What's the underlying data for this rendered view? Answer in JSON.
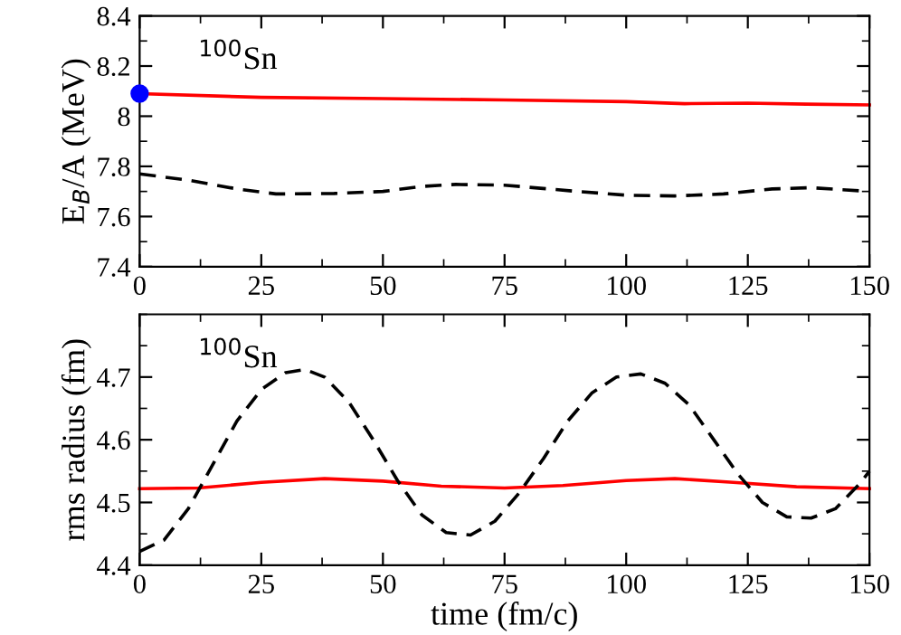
{
  "chart_data": [
    {
      "type": "line",
      "ylabel": "E$_{B}$/A (MeV)",
      "annotations": [
        "$^{100}$Sn"
      ],
      "xlim": [
        0,
        150
      ],
      "xticks": [
        0,
        {
          "value": 12.5,
          "label": null
        },
        25,
        {
          "value": 37.5,
          "label": null
        },
        50,
        {
          "value": 62.5,
          "label": null
        },
        75,
        {
          "value": 87.5,
          "label": null
        },
        100,
        {
          "value": 112.5,
          "label": null
        },
        125,
        {
          "value": 137.5,
          "label": null
        },
        150
      ],
      "ylim": [
        7.4,
        8.4
      ],
      "yticks": [
        7.4,
        {
          "value": 7.5,
          "label": null
        },
        7.6,
        {
          "value": 7.7,
          "label": null
        },
        7.8,
        {
          "value": 7.9,
          "label": null
        },
        8,
        {
          "value": 8.1,
          "label": null
        },
        8.2,
        {
          "value": 8.3,
          "label": null
        },
        8.4
      ],
      "grid": false,
      "legend": false,
      "series": [
        {
          "color": "#ff0000",
          "line_style": "solid",
          "x": [
            0,
            25,
            50,
            75,
            100,
            112,
            125,
            137,
            150
          ],
          "values": [
            8.09,
            8.075,
            8.07,
            8.065,
            8.058,
            8.05,
            8.052,
            8.048,
            8.045
          ]
        },
        {
          "color": "#000000",
          "line_style": "dashed",
          "x": [
            0,
            10,
            20,
            28,
            40,
            50,
            58,
            65,
            75,
            90,
            100,
            110,
            120,
            130,
            138,
            150
          ],
          "values": [
            7.77,
            7.745,
            7.71,
            7.69,
            7.692,
            7.7,
            7.72,
            7.728,
            7.725,
            7.7,
            7.685,
            7.682,
            7.69,
            7.71,
            7.715,
            7.7
          ]
        },
        {
          "type": "scatter",
          "color": "#0000ff",
          "marker": "circle",
          "x": [
            0
          ],
          "values": [
            8.09
          ]
        }
      ]
    },
    {
      "type": "line",
      "ylabel": "rms radius (fm)",
      "xlabel": "time (fm/c)",
      "annotations": [
        "$^{100}$Sn"
      ],
      "xlim": [
        0,
        150
      ],
      "xticks": [
        0,
        {
          "value": 12.5,
          "label": null
        },
        25,
        {
          "value": 37.5,
          "label": null
        },
        50,
        {
          "value": 62.5,
          "label": null
        },
        75,
        {
          "value": 87.5,
          "label": null
        },
        100,
        {
          "value": 112.5,
          "label": null
        },
        125,
        {
          "value": 137.5,
          "label": null
        },
        150
      ],
      "ylim": [
        4.4,
        4.8
      ],
      "yticks": [
        4.4,
        {
          "value": 4.45,
          "label": null
        },
        4.5,
        {
          "value": 4.55,
          "label": null
        },
        4.6,
        {
          "value": 4.65,
          "label": null
        },
        4.7,
        {
          "value": 4.75,
          "label": null
        },
        {
          "value": 4.8,
          "label": null
        }
      ],
      "grid": false,
      "legend": false,
      "series": [
        {
          "color": "#ff0000",
          "line_style": "solid",
          "x": [
            0,
            12,
            25,
            38,
            50,
            62,
            75,
            87,
            100,
            110,
            122,
            135,
            150
          ],
          "values": [
            4.522,
            4.523,
            4.532,
            4.538,
            4.534,
            4.526,
            4.523,
            4.527,
            4.535,
            4.538,
            4.532,
            4.525,
            4.522
          ]
        },
        {
          "color": "#000000",
          "line_style": "dashed",
          "x": [
            0,
            5,
            10,
            15,
            20,
            25,
            30,
            34,
            38,
            43,
            48,
            53,
            58,
            63,
            68,
            73,
            78,
            83,
            88,
            93,
            98,
            103,
            108,
            113,
            118,
            123,
            128,
            133,
            138,
            143,
            148,
            150
          ],
          "values": [
            4.422,
            4.44,
            4.49,
            4.56,
            4.63,
            4.68,
            4.707,
            4.712,
            4.7,
            4.66,
            4.6,
            4.535,
            4.48,
            4.452,
            4.448,
            4.47,
            4.515,
            4.57,
            4.63,
            4.675,
            4.7,
            4.705,
            4.69,
            4.655,
            4.6,
            4.545,
            4.5,
            4.477,
            4.475,
            4.49,
            4.53,
            4.55
          ]
        }
      ]
    }
  ]
}
